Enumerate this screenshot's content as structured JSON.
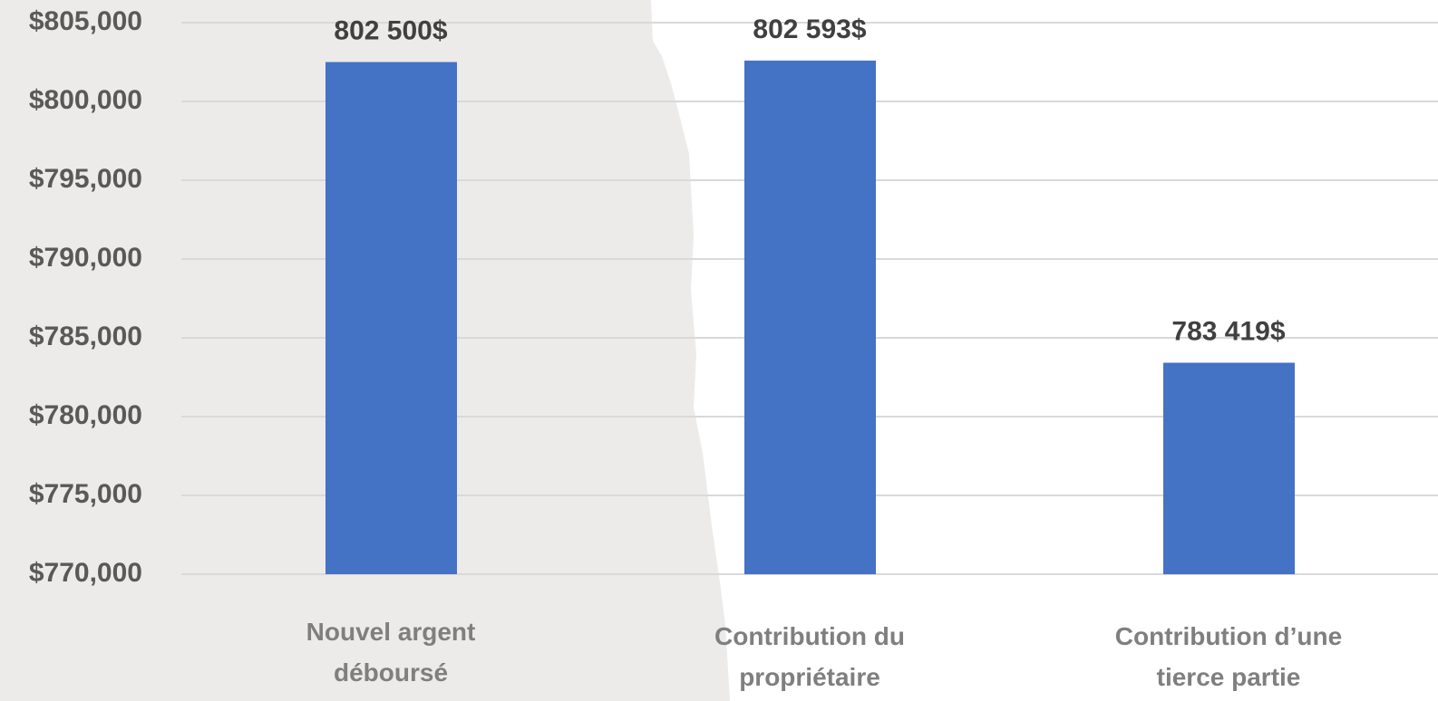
{
  "chart_data": {
    "type": "bar",
    "categories": [
      "Nouvel argent déboursé",
      "Contribution du propriétaire",
      "Contribution d’une tierce partie"
    ],
    "values": [
      802500,
      802593,
      783419
    ],
    "value_labels": [
      "802 500$",
      "802 593$",
      "783 419$"
    ],
    "color": "#4472c4",
    "ylim": [
      770000,
      805000
    ],
    "yticks": [
      {
        "value": 770000,
        "label": "$770,000"
      },
      {
        "value": 775000,
        "label": "$775,000"
      },
      {
        "value": 780000,
        "label": "$780,000"
      },
      {
        "value": 785000,
        "label": "$785,000"
      },
      {
        "value": 790000,
        "label": "$790,000"
      },
      {
        "value": 795000,
        "label": "$795,000"
      },
      {
        "value": 800000,
        "label": "$800,000"
      },
      {
        "value": 805000,
        "label": "$805,000"
      }
    ],
    "grid": true
  }
}
